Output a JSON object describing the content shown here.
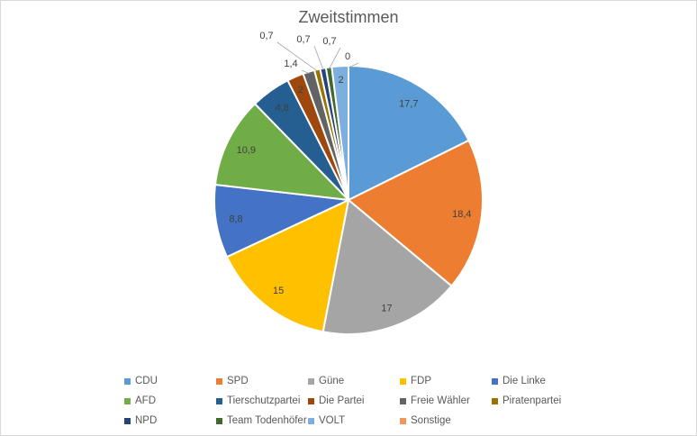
{
  "chart_data": {
    "type": "pie",
    "title": "Zweitstimmen",
    "categories": [
      "CDU",
      "SPD",
      "Güne",
      "FDP",
      "Die Linke",
      "AFD",
      "Tierschutzpartei",
      "Die Partei",
      "Freie Wähler",
      "Piratenpartei",
      "NPD",
      "Team Todenhöfer",
      "VOLT",
      "Sonstige"
    ],
    "values": [
      17.7,
      18.4,
      17,
      15,
      8.8,
      10.9,
      4.8,
      2,
      1.4,
      0.7,
      0.7,
      0.7,
      2,
      0
    ],
    "data_labels": [
      "17,7",
      "18,4",
      "17",
      "15",
      "8,8",
      "10,9",
      "4,8",
      "2",
      "1,4",
      "0,7",
      "0,7",
      "0,7",
      "2",
      "0"
    ],
    "colors": [
      "#5b9bd5",
      "#ed7d31",
      "#a5a5a5",
      "#ffc000",
      "#4472c4",
      "#70ad47",
      "#255e91",
      "#9e480e",
      "#636363",
      "#997300",
      "#264478",
      "#43682b",
      "#7cafdd",
      "#f1975a"
    ],
    "legend_position": "bottom"
  }
}
